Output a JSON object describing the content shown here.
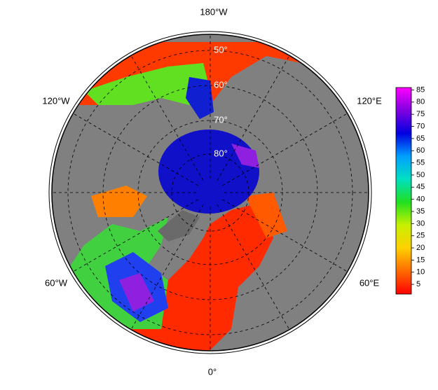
{
  "map": {
    "longitude_labels": [
      "180°W",
      "120°W",
      "120°E",
      "60°W",
      "60°E",
      "0°"
    ],
    "latitude_labels": [
      "50°",
      "60°",
      "70°",
      "80°"
    ]
  },
  "colorbar": {
    "lim": [
      1,
      86
    ],
    "ticks": [
      5,
      10,
      15,
      20,
      25,
      30,
      35,
      40,
      45,
      50,
      55,
      60,
      65,
      70,
      75,
      80,
      85
    ],
    "colors": [
      "#ff0000",
      "#ff6a00",
      "#ffd000",
      "#c8f000",
      "#20e020",
      "#00e0c0",
      "#00a0ff",
      "#0000e0",
      "#8000e0",
      "#ff00ff"
    ]
  }
}
